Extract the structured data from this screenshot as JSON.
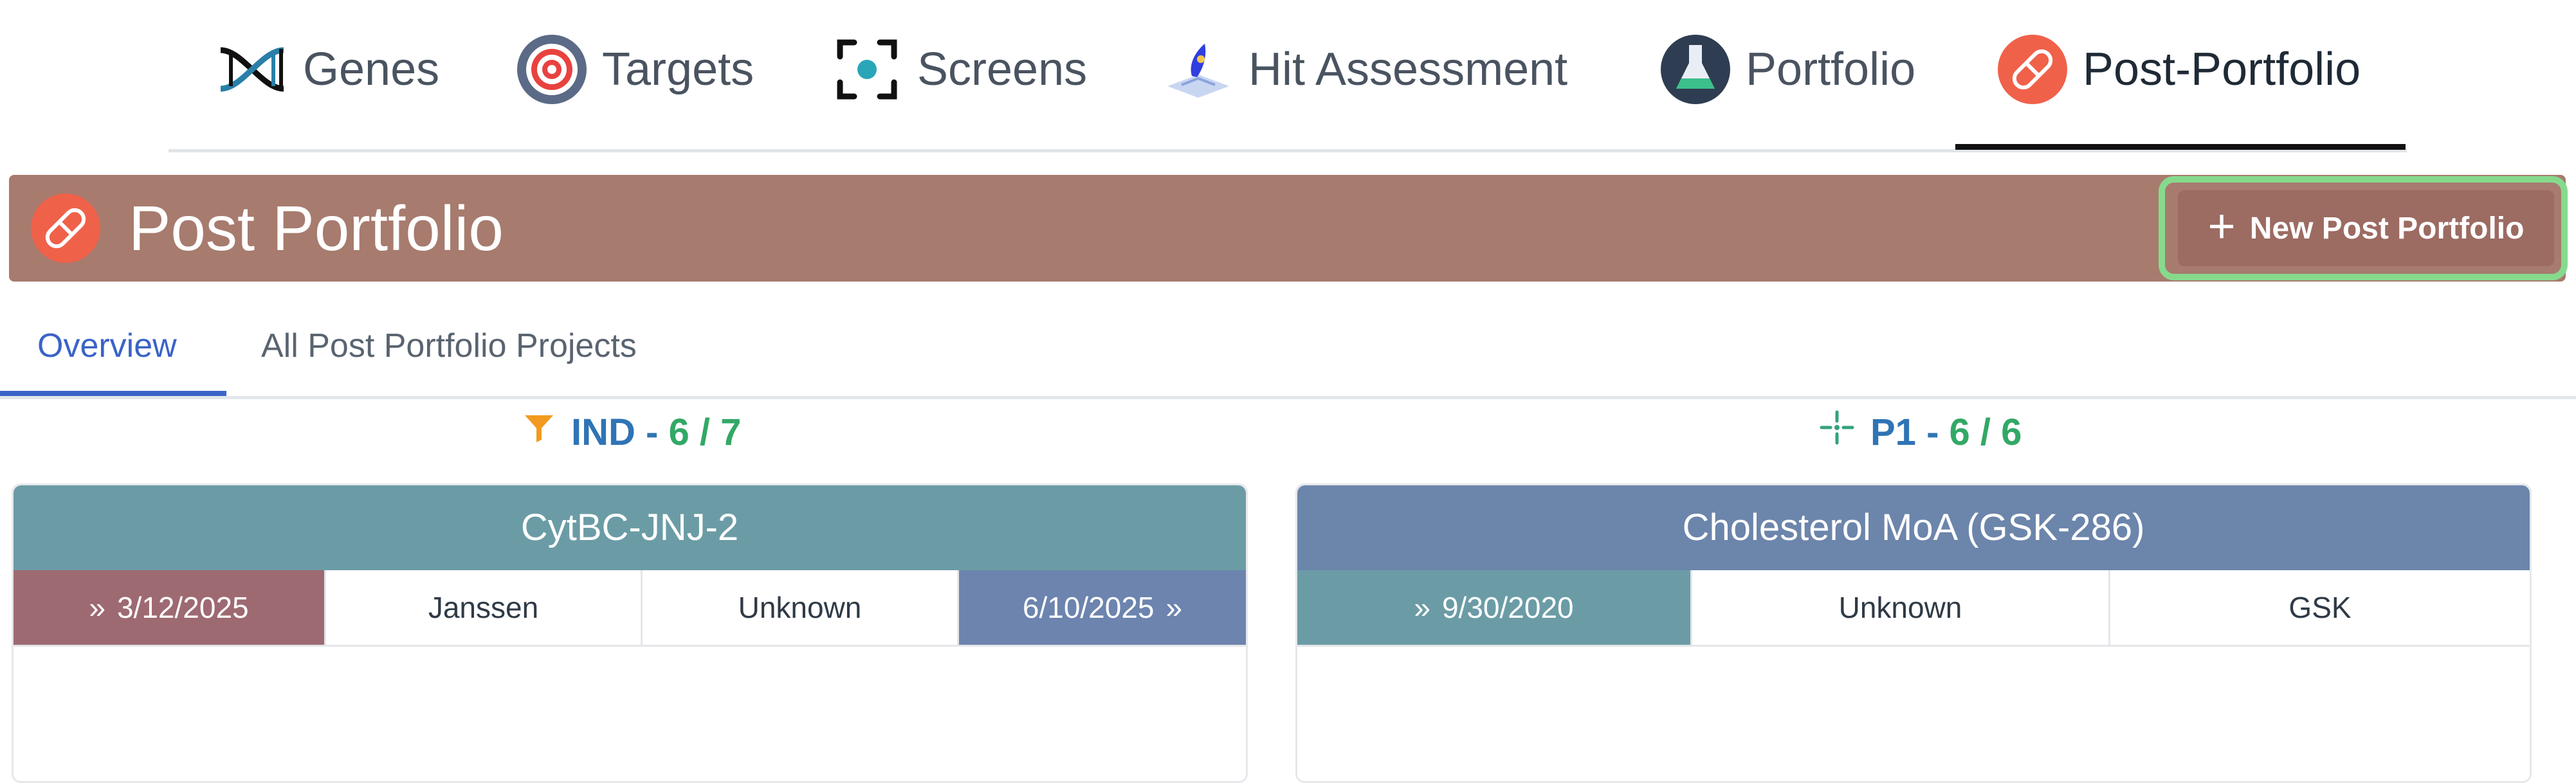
{
  "nav": {
    "items": [
      {
        "label": "Genes",
        "icon": "dna-icon"
      },
      {
        "label": "Targets",
        "icon": "target-icon"
      },
      {
        "label": "Screens",
        "icon": "screen-focus-icon"
      },
      {
        "label": "Hit Assessment",
        "icon": "hit-assessment-icon"
      },
      {
        "label": "Portfolio",
        "icon": "flask-icon"
      },
      {
        "label": "Post-Portfolio",
        "icon": "pill-icon"
      }
    ],
    "active_index": 5
  },
  "header": {
    "title": "Post Portfolio",
    "icon": "pill-icon",
    "new_button_label": "New Post Portfolio",
    "band_color": "#a77b6e"
  },
  "tabs": [
    {
      "label": "Overview",
      "active": true
    },
    {
      "label": "All Post Portfolio Projects",
      "active": false
    }
  ],
  "columns": [
    {
      "stage": "IND",
      "separator": "-",
      "count": "6 / 7",
      "icon": "funnel-icon",
      "card": {
        "title": "CytBC-JNJ-2",
        "header_color": "#6b9ca6",
        "cells": [
          {
            "text": "3/12/2025",
            "prefix": "»",
            "color": "#9e6a72"
          },
          {
            "text": "Janssen"
          },
          {
            "text": "Unknown"
          },
          {
            "text": "6/10/2025",
            "suffix": "»",
            "color": "#6c84ae"
          }
        ]
      }
    },
    {
      "stage": "P1",
      "separator": "-",
      "count": "6 / 6",
      "icon": "crosshair-icon",
      "card": {
        "title": "Cholesterol MoA (GSK-286)",
        "header_color": "#6c85ab",
        "cells": [
          {
            "text": "9/30/2020",
            "prefix": "»",
            "color": "#6b9ca6"
          },
          {
            "text": "Unknown"
          },
          {
            "text": "GSK"
          }
        ]
      }
    }
  ]
}
